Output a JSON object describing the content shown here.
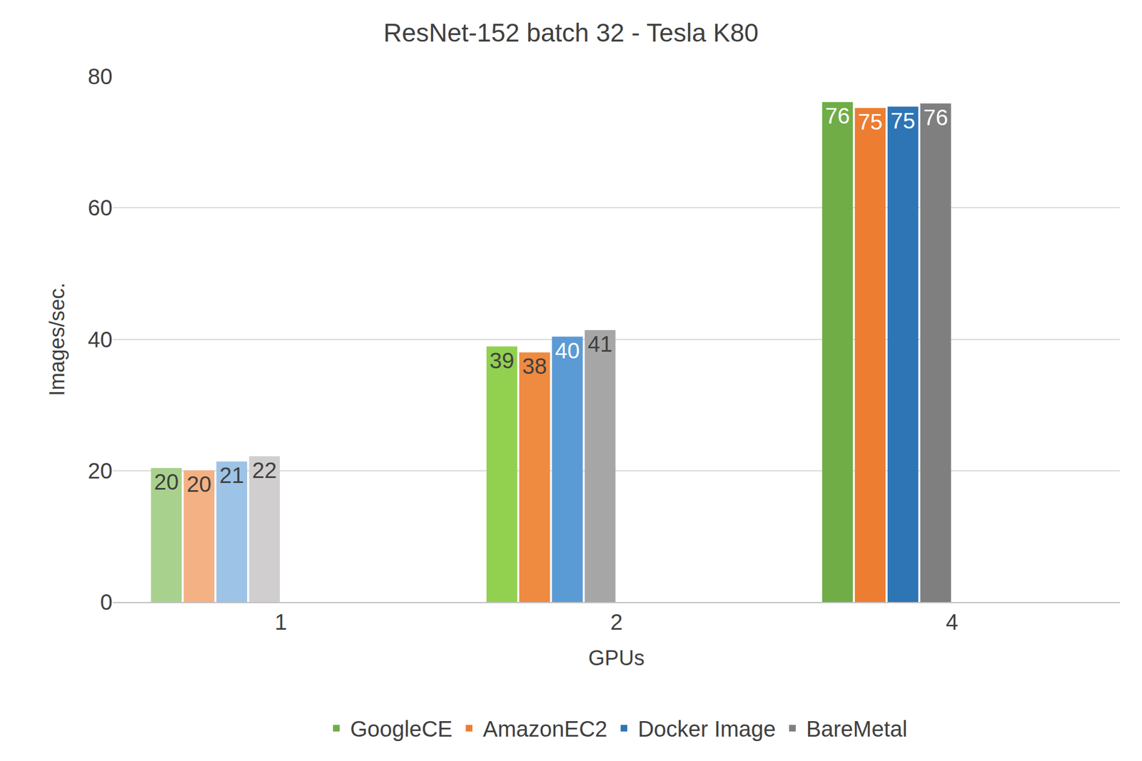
{
  "chart_data": {
    "type": "bar",
    "title": "ResNet-152 batch 32 - Tesla K80",
    "x_label": "GPUs",
    "y_label": "Images/sec.",
    "categories": [
      "1",
      "2",
      "4"
    ],
    "series": [
      {
        "name": "GoogleCE",
        "color": "#70ad47",
        "colors": [
          "#a9d18e",
          "#92d050",
          "#70ad47"
        ],
        "values": [
          20.4,
          38.9,
          76.1
        ],
        "value_labels": [
          "20",
          "39",
          "76"
        ]
      },
      {
        "name": "AmazonEC2",
        "color": "#ed7d31",
        "colors": [
          "#f4b183",
          "#ef8a41",
          "#ed7d31"
        ],
        "values": [
          20.05,
          38.0,
          75.2
        ],
        "value_labels": [
          "20",
          "38",
          "75"
        ]
      },
      {
        "name": "Docker Image",
        "color": "#2e75b6",
        "colors": [
          "#9dc3e6",
          "#5b9bd5",
          "#2e75b6"
        ],
        "values": [
          21.4,
          40.4,
          75.4
        ],
        "value_labels": [
          "21",
          "40",
          "75"
        ]
      },
      {
        "name": "BareMetal",
        "color": "#7f7f7f",
        "colors": [
          "#d0cece",
          "#a6a6a6",
          "#7f7f7f"
        ],
        "values": [
          22.2,
          41.4,
          75.9
        ],
        "value_labels": [
          "22",
          "41",
          "76"
        ]
      }
    ],
    "ylim": [
      0,
      80
    ],
    "yticks": [
      0,
      20,
      40,
      60,
      80
    ],
    "grid": true,
    "legend": "bottom",
    "data_labels": true
  }
}
